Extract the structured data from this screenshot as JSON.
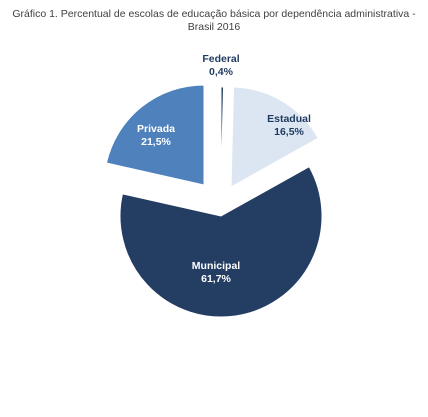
{
  "chart_data": {
    "type": "pie",
    "title_lines": [
      "Gráfico 1. Percentual de escolas de educação básica por dependência administrativa -",
      "Brasil 2016"
    ],
    "slices": [
      {
        "name": "Federal",
        "value": 0.4,
        "value_label": "0,4%",
        "color": "#1f3a5f",
        "label_color": "#1f3a5f"
      },
      {
        "name": "Estadual",
        "value": 16.5,
        "value_label": "16,5%",
        "color": "#dce6f2",
        "label_color": "#1f3a5f"
      },
      {
        "name": "Municipal",
        "value": 61.7,
        "value_label": "61,7%",
        "color": "#243e63",
        "label_color": "#ffffff"
      },
      {
        "name": "Privada",
        "value": 21.5,
        "value_label": "21,5%",
        "color": "#4f81bd",
        "label_color": "#ffffff"
      }
    ],
    "legend": "none"
  }
}
